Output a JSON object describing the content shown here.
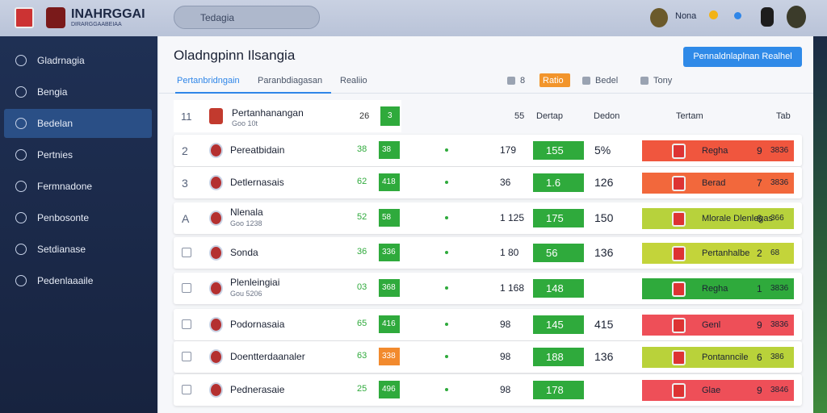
{
  "header": {
    "logo": "INAHRGGAI",
    "logo_sub": "DIRARGGAABEIAA",
    "search": "Tedagia",
    "user": "Nona"
  },
  "sidebar": {
    "items": [
      "Gladrnagia",
      "Bengia",
      "Bedelan",
      "Pertnies",
      "Fermnadone",
      "Penbosonte",
      "Setdianase",
      "Pedenlaaaile"
    ],
    "active": 2
  },
  "main": {
    "title": "Oladngpinn Ilsangia",
    "button": "Pennaldnlaplnan Realhel",
    "tabs": [
      "Pertanbridngain",
      "Paranbdiagasan",
      "Realiio"
    ],
    "right_tabs": [
      "8",
      "Ratio",
      "Bedel",
      "Tony"
    ]
  },
  "table": {
    "header": {
      "rank": "11",
      "name": "Pertanhanangan",
      "sub": "Goo 10t",
      "v1": "26",
      "badge": "3",
      "v3": "55",
      "c1": "Dertap",
      "c2": "Dedon",
      "c3": "Tertam",
      "c4": "Tab"
    },
    "rows": [
      {
        "rank": "2",
        "name": "Pereatbidain",
        "sub": "",
        "v1": "38",
        "badge": "38",
        "badge_color": "#2faa3c",
        "v3": "179",
        "score": "155",
        "extra": "5%",
        "bar_label": "Regha",
        "bar_n1": "9",
        "bar_n2": "3836",
        "bar_color": "#f0563e"
      },
      {
        "rank": "3",
        "name": "Detlernasais",
        "sub": "",
        "v1": "62",
        "badge": "418",
        "badge_color": "#2faa3c",
        "v3": "36",
        "score": "1.6",
        "extra": "126",
        "bar_label": "Berad",
        "bar_n1": "7",
        "bar_n2": "3836",
        "bar_color": "#f2683c"
      },
      {
        "rank": "A",
        "name": "Nlenala",
        "sub": "Goo 1238",
        "v1": "52",
        "badge": "58",
        "badge_color": "#2faa3c",
        "v3": "1 125",
        "score": "175",
        "extra": "150",
        "bar_label": "Mlorale Dlenlegas",
        "bar_n1": "6",
        "bar_n2": "366",
        "bar_color": "#b7d23c"
      },
      {
        "rank": "",
        "name": "Sonda",
        "sub": "",
        "v1": "36",
        "badge": "336",
        "badge_color": "#2faa3c",
        "v3": "1 80",
        "score": "56",
        "extra": "136",
        "bar_label": "Pertanhalbe",
        "bar_n1": "2",
        "bar_n2": "68",
        "bar_color": "#c3d43a"
      },
      {
        "rank": "",
        "name": "Plenleingiai",
        "sub": "Gou 5206",
        "v1": "03",
        "badge": "368",
        "badge_color": "#2faa3c",
        "v3": "1 168",
        "score": "148",
        "extra": "",
        "bar_label": "Regha",
        "bar_n1": "1",
        "bar_n2": "3836",
        "bar_color": "#2faa3c"
      },
      {
        "rank": "",
        "name": "Podornasaia",
        "sub": "",
        "v1": "65",
        "badge": "416",
        "badge_color": "#2faa3c",
        "v3": "98",
        "score": "145",
        "extra": "415",
        "bar_label": "Genl",
        "bar_n1": "9",
        "bar_n2": "3836",
        "bar_color": "#ee4f58"
      },
      {
        "rank": "",
        "name": "Doentterdaanaler",
        "sub": "",
        "v1": "63",
        "badge": "338",
        "badge_color": "#f28a2e",
        "v3": "98",
        "score": "188",
        "extra": "136",
        "bar_label": "Pontanncile",
        "bar_n1": "6",
        "bar_n2": "386",
        "bar_color": "#b9d23a"
      },
      {
        "rank": "",
        "name": "Pednerasaie",
        "sub": "",
        "v1": "25",
        "badge": "496",
        "badge_color": "#2faa3c",
        "v3": "98",
        "score": "178",
        "extra": "",
        "bar_label": "Glae",
        "bar_n1": "9",
        "bar_n2": "3846",
        "bar_color": "#ee4f58"
      }
    ]
  }
}
